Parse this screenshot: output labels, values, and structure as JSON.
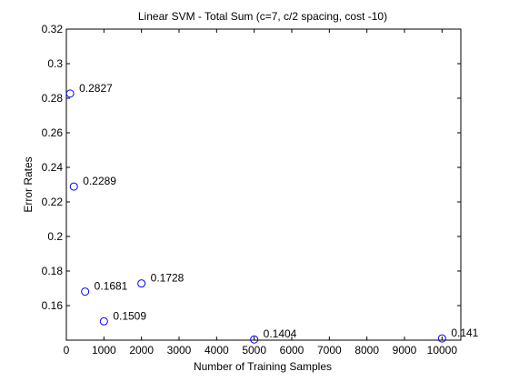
{
  "chart_data": {
    "type": "scatter",
    "title": "Linear SVM - Total Sum (c=7, c/2 spacing, cost -10)",
    "xlabel": "Number of Training Samples",
    "ylabel": "Error Rates",
    "xlim": [
      0,
      10500
    ],
    "ylim": [
      0.14,
      0.32
    ],
    "xticks": [
      0,
      1000,
      2000,
      3000,
      4000,
      5000,
      6000,
      7000,
      8000,
      9000,
      10000
    ],
    "yticks": [
      0.16,
      0.18,
      0.2,
      0.22,
      0.24,
      0.26,
      0.28,
      0.3,
      0.32
    ],
    "xtick_labels": [
      "0",
      "1000",
      "2000",
      "3000",
      "4000",
      "5000",
      "6000",
      "7000",
      "8000",
      "9000",
      "10000"
    ],
    "ytick_labels": [
      "0.16",
      "0.18",
      "0.2",
      "0.22",
      "0.24",
      "0.26",
      "0.28",
      "0.3",
      "0.32"
    ],
    "grid": false,
    "marker_color": "#0000ff",
    "points": [
      {
        "x": 100,
        "y": 0.2827,
        "label": "0.2827"
      },
      {
        "x": 200,
        "y": 0.2289,
        "label": "0.2289"
      },
      {
        "x": 500,
        "y": 0.1681,
        "label": "0.1681"
      },
      {
        "x": 1000,
        "y": 0.1509,
        "label": "0.1509"
      },
      {
        "x": 2000,
        "y": 0.1728,
        "label": "0.1728"
      },
      {
        "x": 5000,
        "y": 0.1404,
        "label": "0.1404"
      },
      {
        "x": 10000,
        "y": 0.141,
        "label": "0.141"
      }
    ]
  }
}
